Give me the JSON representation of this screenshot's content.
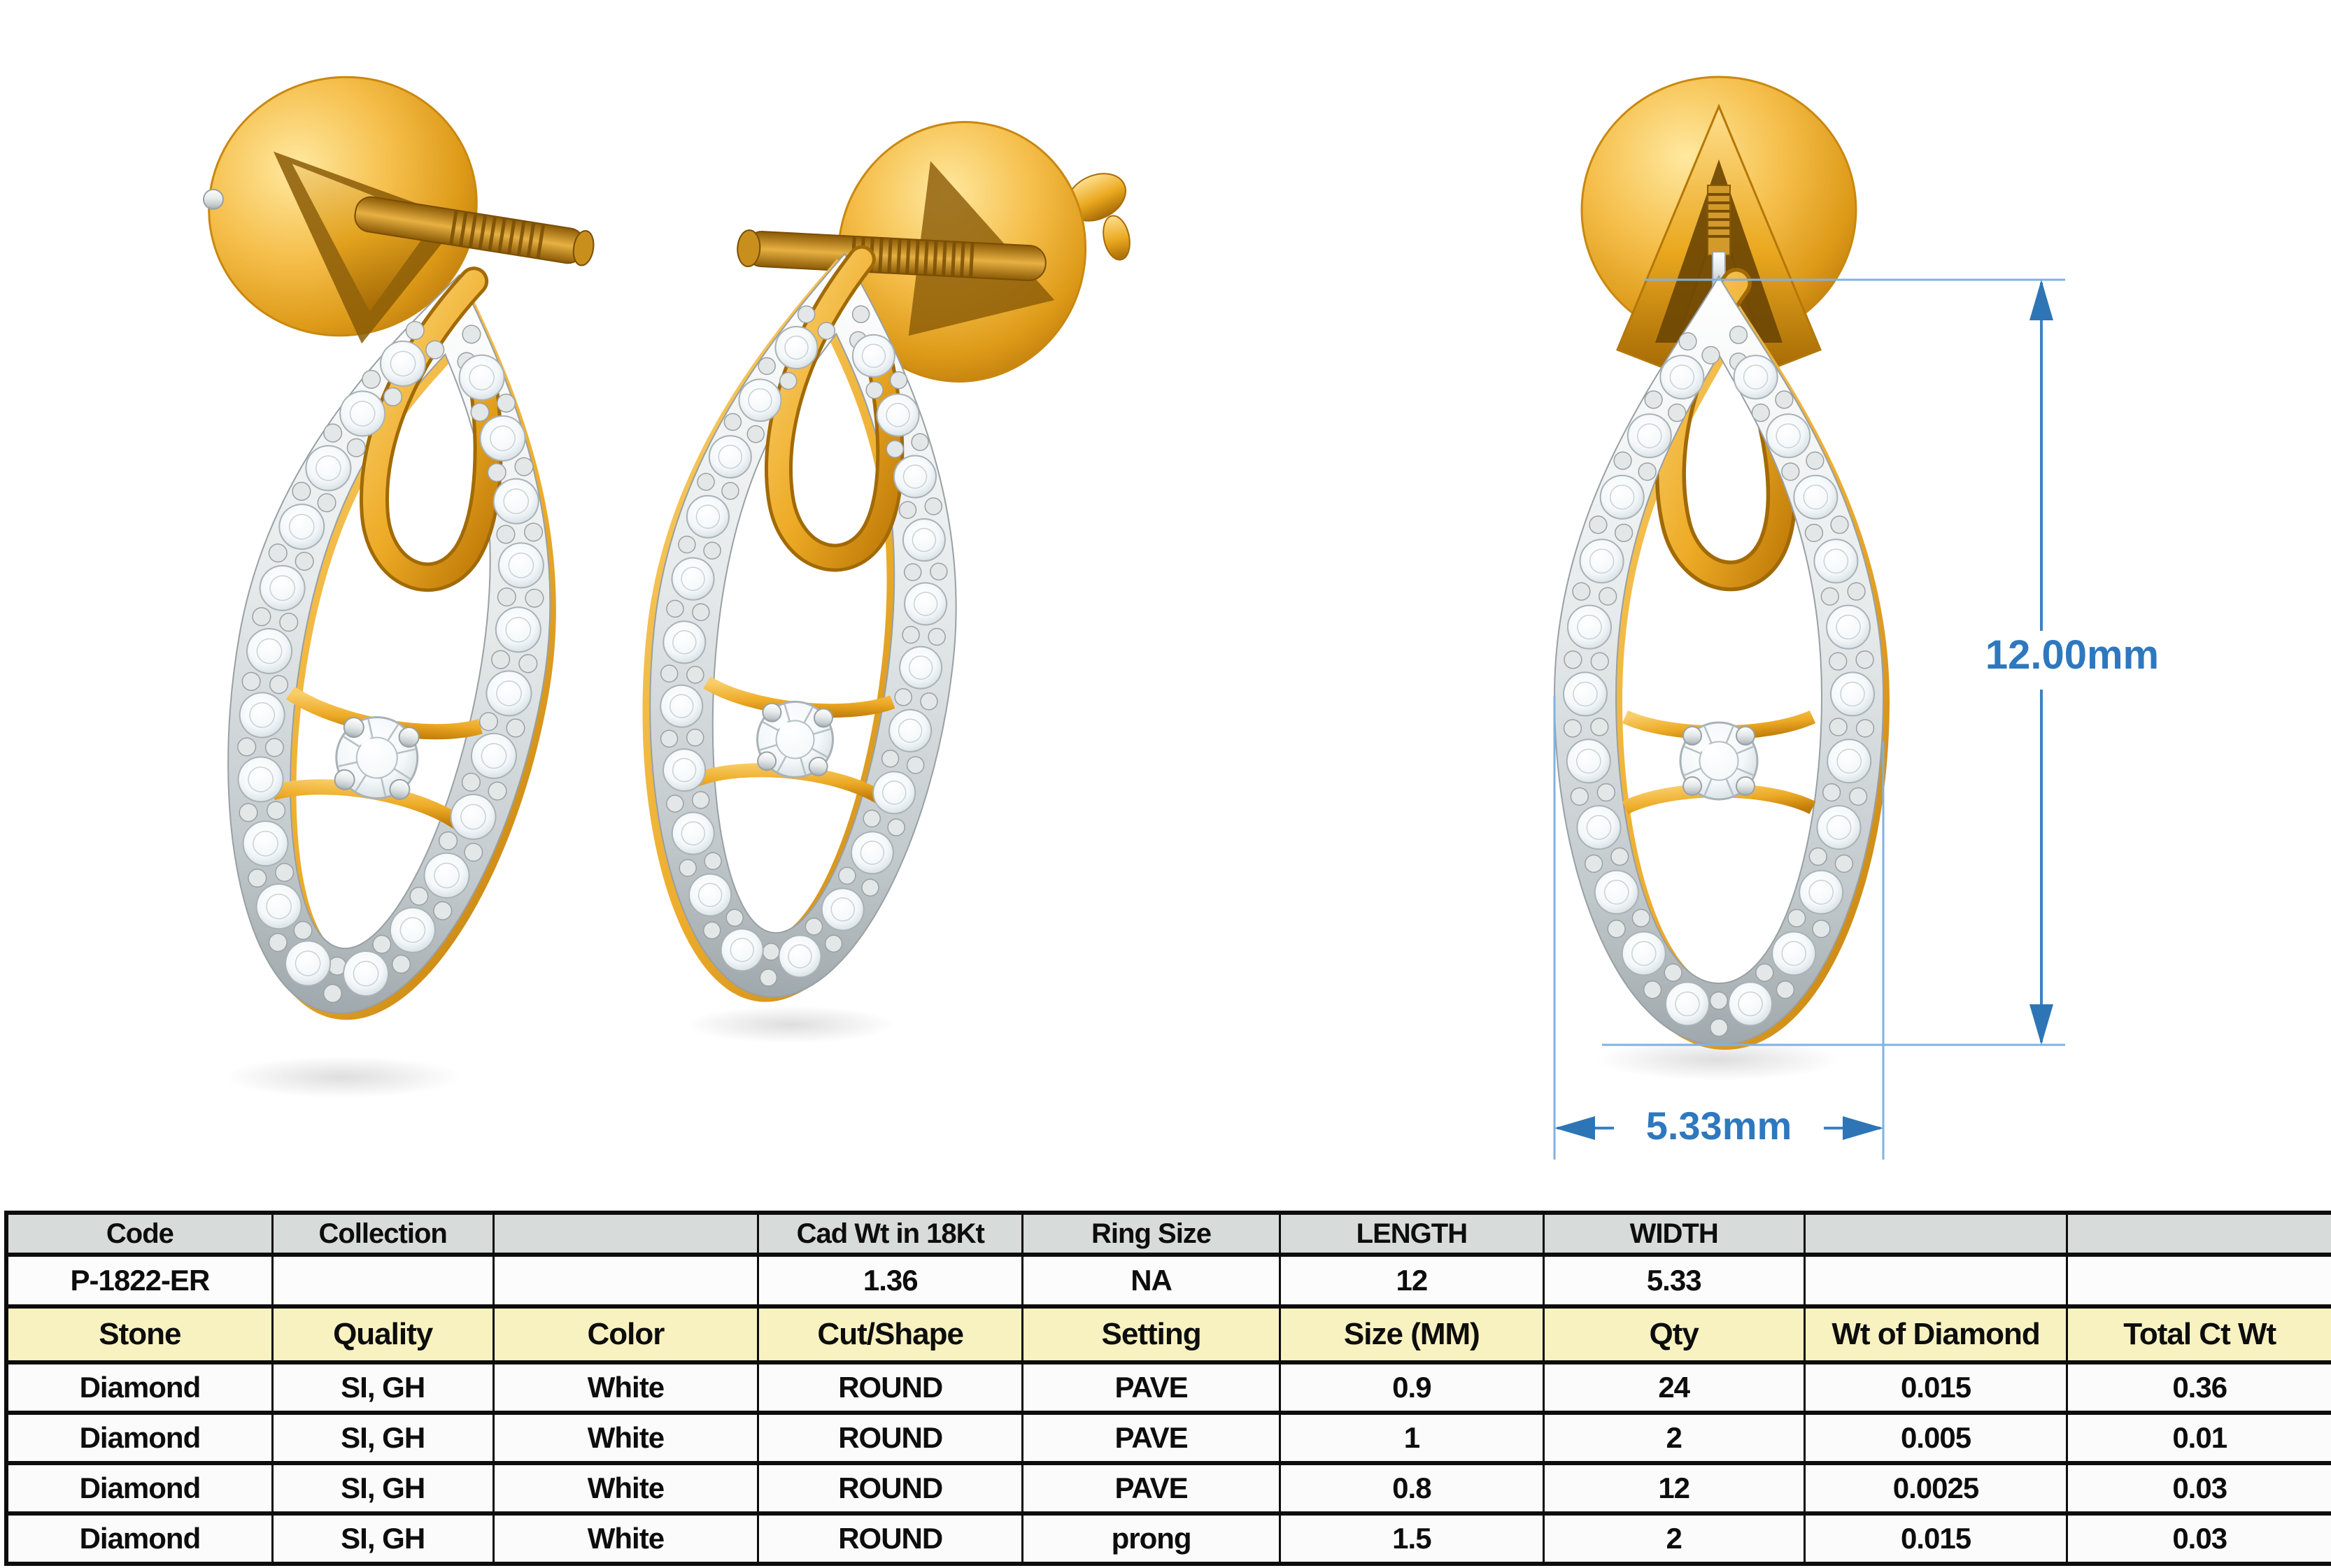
{
  "sheet": {
    "title": "jewellery-spec-sheet",
    "product_views": [
      {
        "name": "earring-back-three-quarter-view"
      },
      {
        "name": "earring-side-three-quarter-view"
      },
      {
        "name": "earring-front-dimension-view"
      }
    ],
    "dimensions": {
      "height": "12.00mm",
      "width": "5.33mm"
    },
    "colors": {
      "gold": "#EDAA25",
      "gold_deep": "#B9770B",
      "white_metal": "#D9DEDF",
      "diamond": "#F2F6F8",
      "dimension_blue": "#2E75B6",
      "extension_blue": "#7FB2E2",
      "header_gray": "#D7DBDA",
      "header_yellow": "#F8F2C1",
      "row_white": "#FCFCFC",
      "border_black": "#0D0D0D"
    },
    "table": {
      "header_row": [
        "Code",
        "Collection",
        "",
        "Cad Wt in 18Kt",
        "Ring Size",
        "LENGTH",
        "WIDTH",
        "",
        ""
      ],
      "product_row": [
        "P-1822-ER",
        "",
        "",
        "1.36",
        "NA",
        "12",
        "5.33",
        "",
        ""
      ],
      "stone_header_row": [
        "Stone",
        "Quality",
        "Color",
        "Cut/Shape",
        "Setting",
        "Size (MM)",
        "Qty",
        "Wt of Diamond",
        "Total Ct Wt"
      ],
      "stone_rows": [
        [
          "Diamond",
          "SI, GH",
          "White",
          "ROUND",
          "PAVE",
          "0.9",
          "24",
          "0.015",
          "0.36"
        ],
        [
          "Diamond",
          "SI, GH",
          "White",
          "ROUND",
          "PAVE",
          "1",
          "2",
          "0.005",
          "0.01"
        ],
        [
          "Diamond",
          "SI, GH",
          "White",
          "ROUND",
          "PAVE",
          "0.8",
          "12",
          "0.0025",
          "0.03"
        ],
        [
          "Diamond",
          "SI, GH",
          "White",
          "ROUND",
          "prong",
          "1.5",
          "2",
          "0.015",
          "0.03"
        ]
      ]
    }
  }
}
